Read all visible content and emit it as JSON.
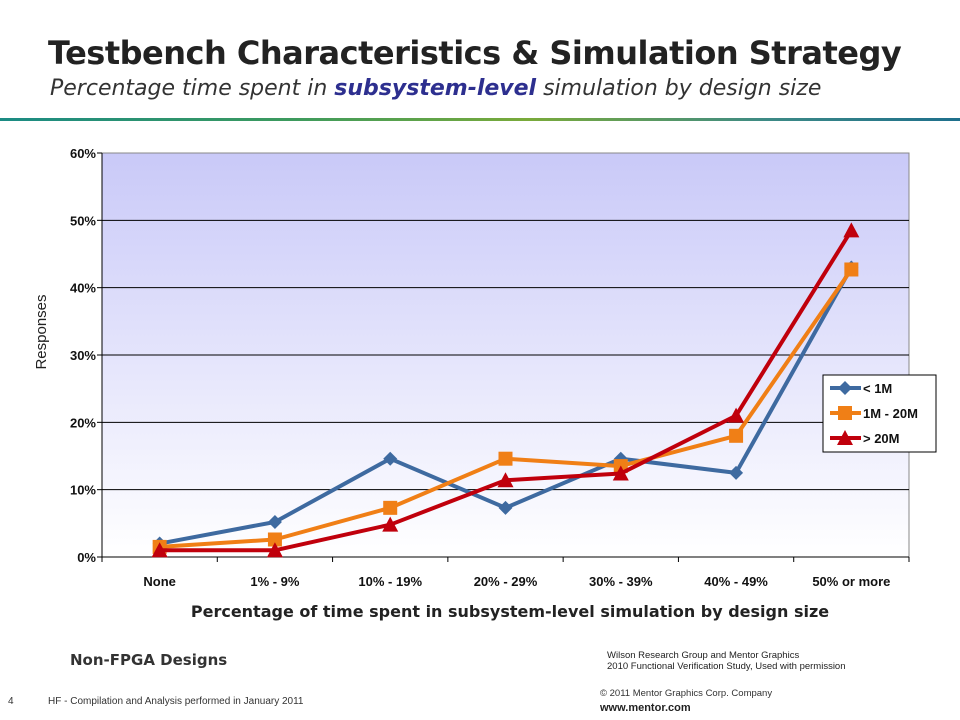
{
  "slide": {
    "title": "Testbench Characteristics & Simulation Strategy",
    "subtitle_pre": "Percentage time spent in ",
    "subtitle_em": "subsystem-level",
    "subtitle_post": " simulation by design size",
    "design_type": "Non-FPGA Designs",
    "credit_line1": "Wilson Research Group and Mentor Graphics",
    "credit_line2": "2010 Functional Verification Study,  Used with permission",
    "page_number": "4",
    "footer_note": "HF - Compilation and Analysis performed in January 2011",
    "copyright": "© 2011 Mentor Graphics Corp. Company",
    "website": "www.mentor.com"
  },
  "chart_data": {
    "type": "line",
    "title": "",
    "xlabel": "Percentage of time spent in subsystem-level simulation by design size",
    "ylabel": "Responses",
    "categories": [
      "None",
      "1% - 9%",
      "10% - 19%",
      "20% - 29%",
      "30% - 39%",
      "40% - 49%",
      "50% or more"
    ],
    "y_ticks": [
      "0%",
      "10%",
      "20%",
      "30%",
      "40%",
      "50%",
      "60%"
    ],
    "ylim": [
      0,
      60
    ],
    "grid": true,
    "legend_position": "right",
    "series": [
      {
        "name": "< 1M",
        "color": "#3e6aa0",
        "marker": "diamond",
        "values": [
          2.0,
          5.2,
          14.6,
          7.3,
          14.6,
          12.5,
          43.0
        ]
      },
      {
        "name": "1M - 20M",
        "color": "#f07f16",
        "marker": "square",
        "values": [
          1.5,
          2.6,
          7.3,
          14.6,
          13.5,
          18.0,
          42.7
        ]
      },
      {
        "name": "> 20M",
        "color": "#c0000c",
        "marker": "triangle",
        "values": [
          1.0,
          1.0,
          4.8,
          11.4,
          12.4,
          21.0,
          48.5
        ]
      }
    ]
  }
}
